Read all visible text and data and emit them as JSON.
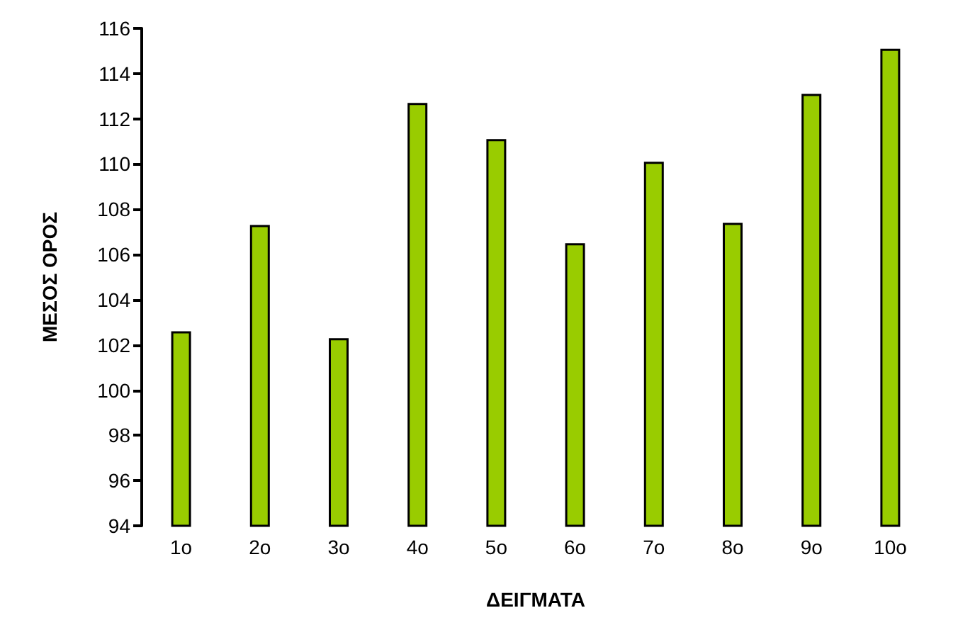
{
  "chart_data": {
    "type": "bar",
    "xlabel": "ΔΕΙΓΜΑΤΑ",
    "ylabel": "ΜΕΣΟΣ ΟΡΟΣ",
    "categories": [
      "1ο",
      "2ο",
      "3ο",
      "4ο",
      "5ο",
      "6ο",
      "7ο",
      "8ο",
      "9ο",
      "10ο"
    ],
    "values": [
      102.6,
      107.3,
      102.3,
      112.7,
      111.1,
      106.5,
      110.1,
      107.4,
      113.1,
      115.1
    ],
    "color": "#99cc00",
    "ylim": [
      94,
      116
    ],
    "yticks": [
      94,
      96,
      98,
      100,
      102,
      104,
      106,
      108,
      110,
      112,
      114,
      116
    ],
    "grid": false
  }
}
